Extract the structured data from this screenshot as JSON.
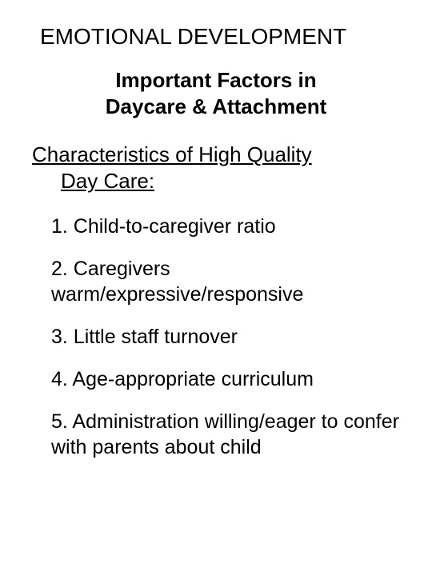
{
  "colors": {
    "background": "#ffffff",
    "text": "#000000"
  },
  "typography": {
    "family": "Arial, Helvetica, sans-serif",
    "title_fontsize": 28,
    "subtitle_fontsize": 26,
    "heading_fontsize": 26,
    "body_fontsize": 25,
    "title_weight": 400,
    "subtitle_weight": 700,
    "heading_weight": 400,
    "body_weight": 400
  },
  "main_title": "EMOTIONAL DEVELOPMENT",
  "subtitle": "Important Factors in Daycare & Attachment",
  "section_heading_line1": "Characteristics of High Quality",
  "section_heading_line2": "Day Care:",
  "items": [
    {
      "num": "1. ",
      "text": " Child-to-caregiver ratio"
    },
    {
      "num": "2. ",
      "text": " Caregivers warm/expressive/responsive"
    },
    {
      "num": "3. ",
      "text": " Little staff turnover"
    },
    {
      "num": "4. ",
      "text": " Age-appropriate curriculum"
    },
    {
      "num": "5. ",
      "text": " Administration willing/eager to confer with parents about child"
    }
  ]
}
